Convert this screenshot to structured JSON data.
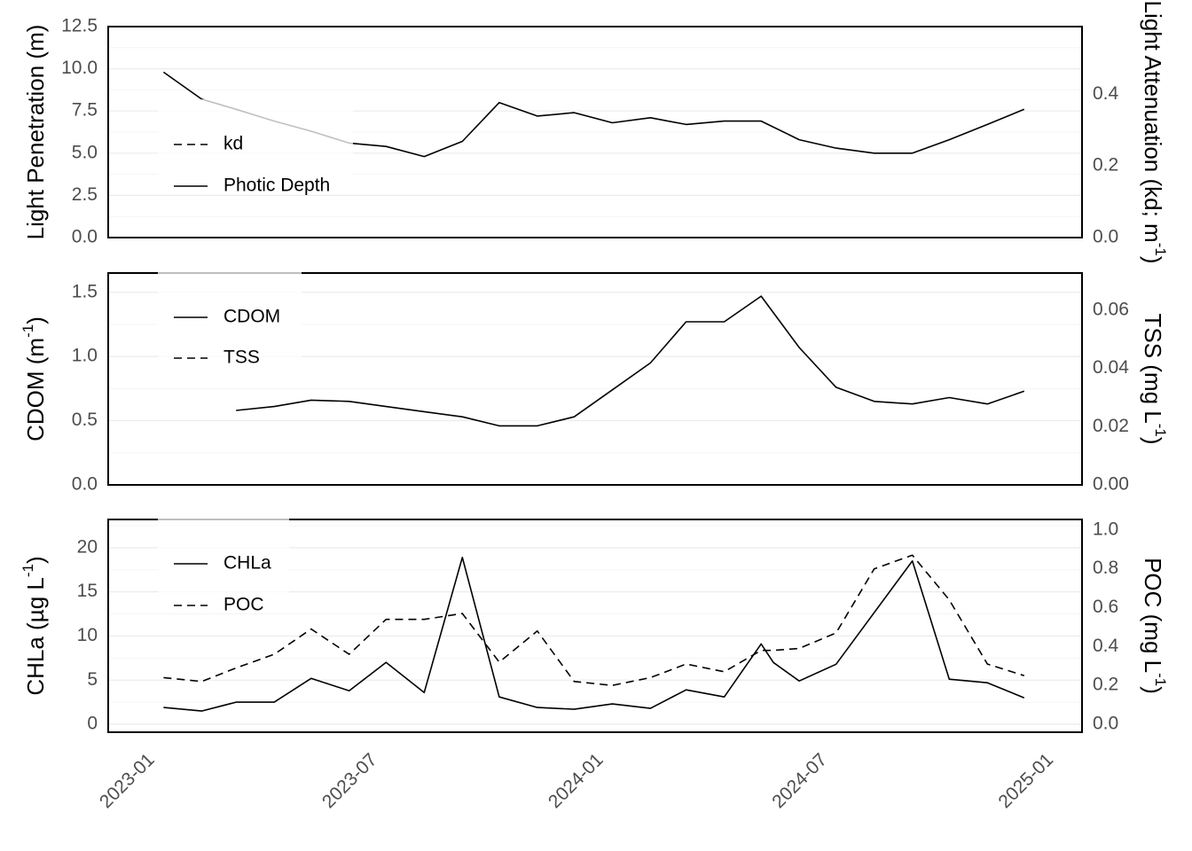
{
  "chart_data": [
    {
      "type": "line",
      "panel": "top",
      "ylabel_left": "Light Penetration (m)",
      "ylabel_right_text": "Light Attenuation (kd; m",
      "ylabel_right_sup": "-1",
      "ylabel_right_tail": ")",
      "ylim_left": [
        0,
        12.5
      ],
      "ylim_right": [
        0,
        0.5888
      ],
      "yticks_left": [
        "0.0",
        "2.5",
        "5.0",
        "7.5",
        "10.0",
        "12.5"
      ],
      "yticks_right": [
        "0.0",
        "0.2",
        "0.4"
      ],
      "legend": [
        "kd",
        "Photic Depth"
      ],
      "legend_placement": "top-left",
      "grid": true,
      "series": [
        {
          "name": "Photic Depth",
          "axis": "left",
          "style": "solid",
          "x": [
            "2023-01-15",
            "2023-02-15",
            "2023-03-15",
            "2023-04-15",
            "2023-05-15",
            "2023-06-15",
            "2023-07-15",
            "2023-08-15",
            "2023-09-15",
            "2023-10-15",
            "2023-11-15",
            "2023-12-15",
            "2024-01-15",
            "2024-02-15",
            "2024-03-15",
            "2024-04-15",
            "2024-05-15",
            "2024-06-15",
            "2024-07-15",
            "2024-08-15",
            "2024-09-15",
            "2024-10-15",
            "2024-11-15",
            "2024-12-15"
          ],
          "y": [
            9.8,
            8.2,
            7.6,
            6.9,
            6.3,
            5.6,
            5.4,
            4.8,
            5.7,
            8.0,
            7.2,
            7.4,
            6.8,
            7.1,
            6.7,
            6.9,
            6.9,
            5.8,
            5.3,
            5.0,
            5.0,
            5.8,
            6.7,
            7.6
          ]
        },
        {
          "name": "kd",
          "axis": "right",
          "style": "dashed",
          "x": [],
          "y": []
        }
      ]
    },
    {
      "type": "line",
      "panel": "middle",
      "ylabel_left_text": "CDOM (m",
      "ylabel_left_sup": "-1",
      "ylabel_left_tail": ")",
      "ylabel_right_text": "TSS (mg L",
      "ylabel_right_sup": "-1",
      "ylabel_right_tail": ")",
      "ylim_left": [
        0,
        1.65
      ],
      "ylim_right": [
        0,
        0.0728
      ],
      "yticks_left": [
        "0.0",
        "0.5",
        "1.0",
        "1.5"
      ],
      "yticks_right": [
        "0.00",
        "0.02",
        "0.04",
        "0.06"
      ],
      "legend": [
        "CDOM",
        "TSS"
      ],
      "legend_placement": "top-left",
      "grid": true,
      "series": [
        {
          "name": "CDOM",
          "axis": "left",
          "style": "solid",
          "x": [
            "2023-03-15",
            "2023-04-15",
            "2023-05-15",
            "2023-06-15",
            "2023-07-15",
            "2023-08-15",
            "2023-09-15",
            "2023-10-15",
            "2023-11-15",
            "2023-12-15",
            "2024-01-15",
            "2024-02-15",
            "2024-03-15",
            "2024-04-15",
            "2024-05-15",
            "2024-06-15",
            "2024-07-15",
            "2024-08-15",
            "2024-09-15",
            "2024-10-15",
            "2024-11-15",
            "2024-12-15"
          ],
          "y": [
            0.58,
            0.61,
            0.66,
            0.65,
            0.61,
            0.57,
            0.53,
            0.46,
            0.46,
            0.53,
            0.74,
            0.95,
            1.27,
            1.27,
            1.47,
            1.07,
            0.76,
            0.65,
            0.63,
            0.68,
            0.63,
            0.73
          ]
        },
        {
          "name": "TSS",
          "axis": "right",
          "style": "dashed",
          "x": [],
          "y": []
        }
      ]
    },
    {
      "type": "line",
      "panel": "bottom",
      "ylabel_left_text": "CHLa (µg L",
      "ylabel_left_sup": "-1",
      "ylabel_left_tail": ")",
      "ylabel_right_text": "POC (mg L",
      "ylabel_right_sup": "-1",
      "ylabel_right_tail": ")",
      "ylim_left": [
        -0.9,
        23.2
      ],
      "ylim_right": [
        -0.041,
        1.054
      ],
      "yticks_left": [
        "0",
        "5",
        "10",
        "15",
        "20"
      ],
      "yticks_right": [
        "0.0",
        "0.2",
        "0.4",
        "0.6",
        "0.8",
        "1.0"
      ],
      "legend": [
        "CHLa",
        "POC"
      ],
      "legend_placement": "top-left",
      "grid": true,
      "series": [
        {
          "name": "CHLa",
          "axis": "left",
          "style": "solid",
          "x": [
            "2023-01-15",
            "2023-02-15",
            "2023-03-15",
            "2023-04-15",
            "2023-05-15",
            "2023-06-15",
            "2023-07-15",
            "2023-08-15",
            "2023-09-15",
            "2023-10-15",
            "2023-11-15",
            "2023-12-15",
            "2024-01-15",
            "2024-02-15",
            "2024-03-15",
            "2024-04-15",
            "2024-05-15",
            "2024-05-25",
            "2024-06-15",
            "2024-07-15",
            "2024-09-15",
            "2024-10-15",
            "2024-11-15",
            "2024-12-15"
          ],
          "y": [
            1.9,
            1.5,
            2.5,
            2.5,
            5.2,
            3.8,
            7.0,
            3.6,
            18.9,
            3.1,
            1.9,
            1.7,
            2.3,
            1.8,
            3.9,
            3.1,
            9.1,
            7.0,
            4.9,
            6.8,
            18.5,
            5.1,
            4.7,
            3.0
          ]
        },
        {
          "name": "POC",
          "axis": "right",
          "style": "dashed",
          "x": [
            "2023-01-15",
            "2023-02-15",
            "2023-03-15",
            "2023-04-15",
            "2023-05-15",
            "2023-06-15",
            "2023-07-15",
            "2023-08-15",
            "2023-09-15",
            "2023-10-15",
            "2023-11-15",
            "2023-12-15",
            "2024-01-15",
            "2024-02-15",
            "2024-03-15",
            "2024-04-15",
            "2024-05-15",
            "2024-05-25",
            "2024-06-15",
            "2024-07-15",
            "2024-08-15",
            "2024-09-15",
            "2024-10-15",
            "2024-11-15",
            "2024-12-15"
          ],
          "y": [
            0.24,
            0.22,
            0.29,
            0.36,
            0.49,
            0.36,
            0.54,
            0.54,
            0.57,
            0.32,
            0.48,
            0.22,
            0.2,
            0.24,
            0.31,
            0.27,
            0.38,
            0.38,
            0.39,
            0.47,
            0.8,
            0.87,
            0.64,
            0.31,
            0.25
          ]
        }
      ]
    }
  ],
  "x_axis": {
    "range": [
      "2022-12-01",
      "2025-01-31"
    ],
    "ticks": [
      {
        "date": "2023-01-01",
        "label": "2023-01"
      },
      {
        "date": "2023-07-01",
        "label": "2023-07"
      },
      {
        "date": "2024-01-01",
        "label": "2024-01"
      },
      {
        "date": "2024-07-01",
        "label": "2024-07"
      },
      {
        "date": "2025-01-01",
        "label": "2025-01"
      }
    ]
  },
  "colors": {
    "line": "#000000",
    "tick_text": "#4d4d4d",
    "grid_major": "#ebebeb",
    "grid_minor": "#f5f5f5"
  }
}
